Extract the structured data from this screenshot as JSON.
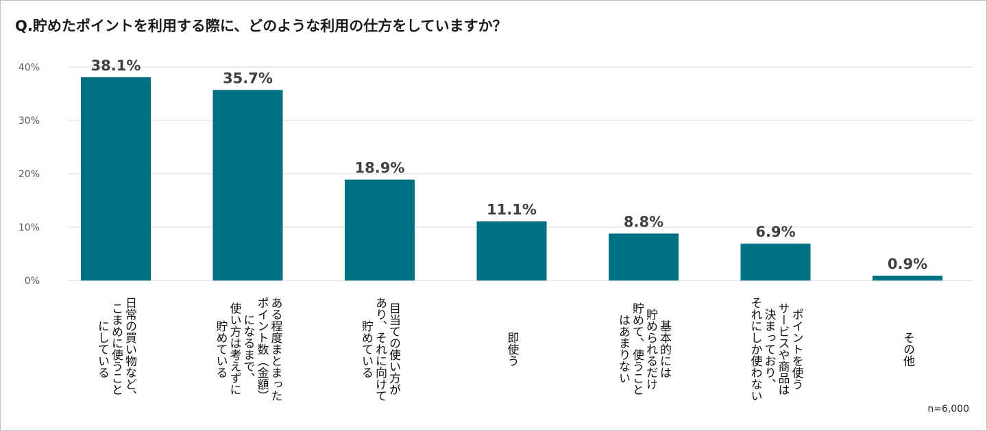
{
  "title": "Q.貯めたポイントを利用する際に、どのような利用の仕方をしていますか？",
  "note": "n=6,000",
  "colors": {
    "bar": "#007083",
    "grid": "#d9d9d9",
    "label": "#404040"
  },
  "chart_data": {
    "type": "bar",
    "title": "Q.貯めたポイントを利用する際に、どのような利用の仕方をしていますか？",
    "categories": [
      [
        "日常の買い物など、",
        "こまめに使うこと",
        "にしている"
      ],
      [
        "ある程度まとまった",
        "ポイント数（金額）",
        "になるまで、",
        "使い方は考えずに",
        "貯めている"
      ],
      [
        "目当ての使い方が",
        "あり、それに向けて",
        "貯めている"
      ],
      [
        "即使う"
      ],
      [
        "基本的には",
        "貯められるだけ",
        "貯めて、使うこと",
        "はあまりない"
      ],
      [
        "ポイントを使う",
        "サービスや商品は",
        "決まっており、",
        "それにしか使わない"
      ],
      [
        "その他"
      ]
    ],
    "values": [
      38.1,
      35.7,
      18.9,
      11.1,
      8.8,
      6.9,
      0.9
    ],
    "data_labels": [
      "38.1%",
      "35.7%",
      "18.9%",
      "11.1%",
      "8.8%",
      "6.9%",
      "0.9%"
    ],
    "yticks": [
      "0%",
      "10%",
      "20%",
      "30%",
      "40%"
    ],
    "ylim": [
      0,
      40
    ],
    "grid": true,
    "legend": "none"
  }
}
